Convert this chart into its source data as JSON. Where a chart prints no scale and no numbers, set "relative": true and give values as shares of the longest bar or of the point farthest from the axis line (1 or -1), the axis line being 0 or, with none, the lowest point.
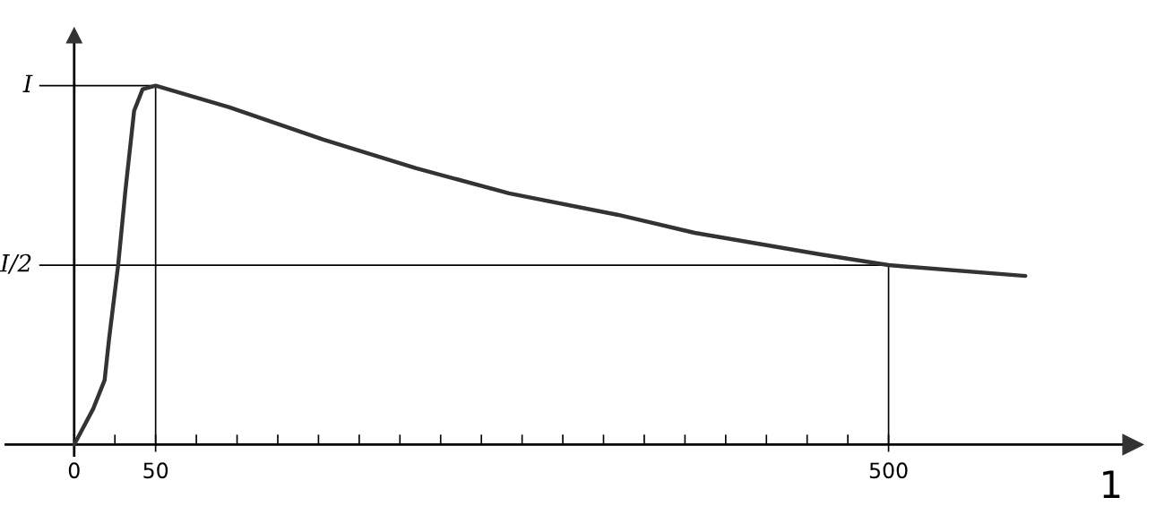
{
  "chart_data": {
    "type": "line",
    "xlabel": "1",
    "relative": true,
    "x": [
      0,
      11.7,
      18.7,
      21.3,
      27,
      31.5,
      36.8,
      42,
      50,
      95,
      153,
      210,
      267,
      334,
      381,
      458,
      500,
      584
    ],
    "series": [
      {
        "color": "#333333",
        "values": [
          0,
          0.1,
          0.18,
          0.29,
          0.5,
          0.71,
          0.93,
          0.99,
          1,
          0.94,
          0.85,
          0.77,
          0.7,
          0.64,
          0.59,
          0.53,
          0.5,
          0.47
        ]
      }
    ],
    "xlim": [
      -42,
      650
    ],
    "xticks": [
      0,
      {
        "value": 25,
        "label": null
      },
      50,
      {
        "value": 75,
        "label": null
      },
      {
        "value": 100,
        "label": null
      },
      {
        "value": 125,
        "label": null
      },
      {
        "value": 150,
        "label": null
      },
      {
        "value": 175,
        "label": null
      },
      {
        "value": 200,
        "label": null
      },
      {
        "value": 225,
        "label": null
      },
      {
        "value": 250,
        "label": null
      },
      {
        "value": 275,
        "label": null
      },
      {
        "value": 300,
        "label": null
      },
      {
        "value": 325,
        "label": null
      },
      {
        "value": 350,
        "label": null
      },
      {
        "value": 375,
        "label": null
      },
      {
        "value": 400,
        "label": null
      },
      {
        "value": 425,
        "label": null
      },
      {
        "value": 450,
        "label": null
      },
      {
        "value": 475,
        "label": null
      },
      500
    ],
    "ref_lines": [
      {
        "axis": "y",
        "value": 0.5,
        "label": "I/2",
        "color": "#000000"
      },
      {
        "axis": "y",
        "value": 1,
        "label": "I",
        "color": "#000000"
      },
      {
        "axis": "x",
        "value": 500,
        "color": "#000000"
      },
      {
        "axis": "x",
        "value": 50,
        "color": "#000000"
      }
    ],
    "grid": false,
    "legend": false,
    "marker": "none",
    "line_style": "solid"
  }
}
